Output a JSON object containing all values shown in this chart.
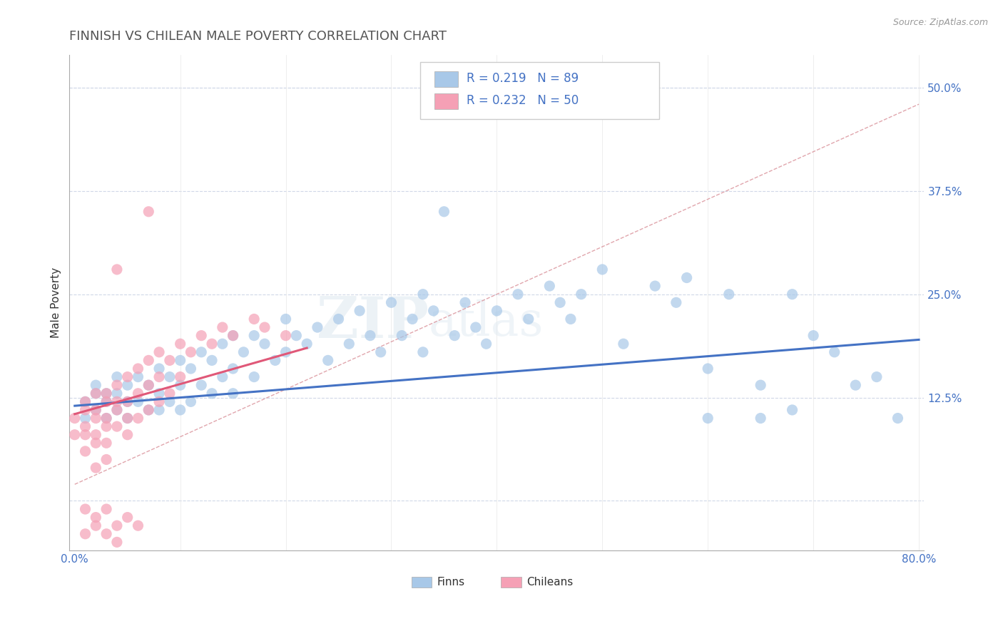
{
  "title": "FINNISH VS CHILEAN MALE POVERTY CORRELATION CHART",
  "source_text": "Source: ZipAtlas.com",
  "ylabel": "Male Poverty",
  "xlim": [
    -0.005,
    0.805
  ],
  "ylim": [
    -0.06,
    0.54
  ],
  "xticks": [
    0.0,
    0.1,
    0.2,
    0.3,
    0.4,
    0.5,
    0.6,
    0.7,
    0.8
  ],
  "xticklabels": [
    "0.0%",
    "",
    "",
    "",
    "",
    "",
    "",
    "",
    "80.0%"
  ],
  "ytick_positions": [
    0.0,
    0.125,
    0.25,
    0.375,
    0.5
  ],
  "yticklabels_right": [
    "",
    "12.5%",
    "25.0%",
    "37.5%",
    "50.0%"
  ],
  "finn_color": "#a8c8e8",
  "chilean_color": "#f5a0b5",
  "finn_line_color": "#4472c4",
  "chilean_line_color": "#e05878",
  "dashed_line_color": "#d4808a",
  "legend_text_color": "#4472c4",
  "title_color": "#555555",
  "R_finn": 0.219,
  "N_finn": 89,
  "R_chilean": 0.232,
  "N_chilean": 50,
  "watermark": "ZIPatlas",
  "background_color": "#ffffff",
  "grid_color": "#d0d8e8"
}
